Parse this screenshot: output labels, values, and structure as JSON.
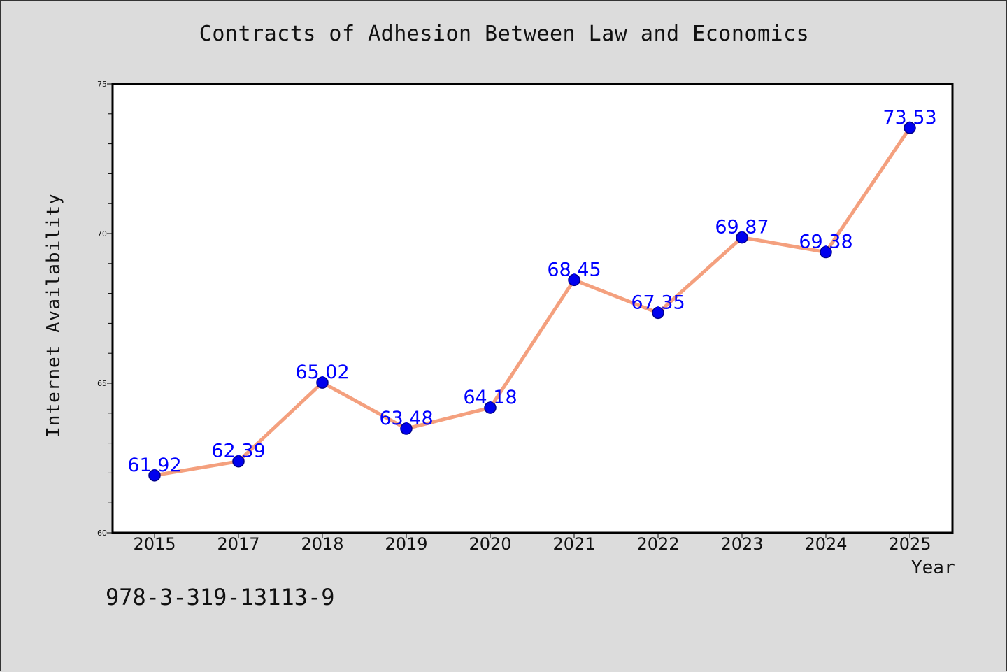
{
  "chart_data": {
    "type": "line",
    "title": "Contracts of Adhesion Between Law and Economics",
    "xlabel": "Year",
    "ylabel": "Internet Availability",
    "categories": [
      "2015",
      "2017",
      "2018",
      "2019",
      "2020",
      "2021",
      "2022",
      "2023",
      "2024",
      "2025"
    ],
    "series": [
      {
        "values": [
          61.92,
          62.39,
          65.02,
          63.48,
          64.18,
          68.45,
          67.35,
          69.87,
          69.38,
          73.53
        ],
        "data_labels": [
          "61.92",
          "62.39",
          "65.02",
          "63.48",
          "64.18",
          "68.45",
          "67.35",
          "69.87",
          "69.38",
          "73.53"
        ]
      }
    ],
    "ylim": [
      60,
      75
    ],
    "yticks": [
      "60",
      "65",
      "70",
      "75"
    ],
    "grid": false,
    "legend": "none",
    "colors": {
      "line": "#f4a07e",
      "marker": "#0000ee",
      "marker_edge": "#00008b",
      "label": "#0000ff"
    }
  },
  "footnote": "978-3-319-13113-9"
}
